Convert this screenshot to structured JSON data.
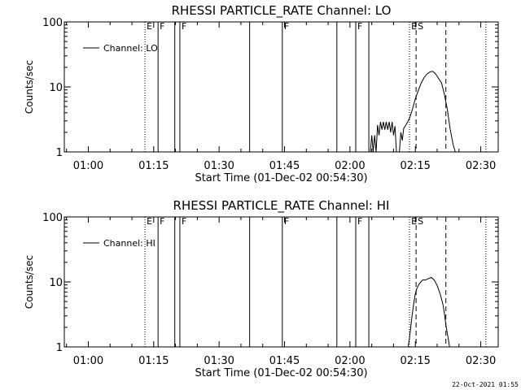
{
  "chart_data": [
    {
      "type": "line",
      "title": "RHESSI PARTICLE_RATE Channel: LO",
      "xlabel": "Start Time (01-Dec-02 00:54:30)",
      "ylabel": "Counts/sec",
      "xscale": "time",
      "yscale": "log",
      "xlim": [
        "00:54:30",
        "02:34:00"
      ],
      "ylim": [
        1,
        100
      ],
      "x_ticks": [
        "01:00",
        "01:15",
        "01:30",
        "01:45",
        "02:00",
        "02:15",
        "02:30"
      ],
      "y_ticks": [
        "1",
        "10",
        "100"
      ],
      "legend": {
        "label": "Channel: LO",
        "position": "top-left"
      },
      "grid": false,
      "series": [
        {
          "name": "Channel: LO",
          "x": [
            "02:04:40",
            "02:05:00",
            "02:05:20",
            "02:05:40",
            "02:06:00",
            "02:06:20",
            "02:06:40",
            "02:07:00",
            "02:07:20",
            "02:07:40",
            "02:08:00",
            "02:08:20",
            "02:08:40",
            "02:09:00",
            "02:09:20",
            "02:09:40",
            "02:10:00",
            "02:10:20",
            "02:10:40",
            "02:11:00",
            "02:11:20",
            "02:11:40",
            "02:12:00",
            "02:12:20",
            "02:13:00",
            "02:13:40",
            "02:14:20",
            "02:15:00",
            "02:15:40",
            "02:16:20",
            "02:17:00",
            "02:17:40",
            "02:18:20",
            "02:19:00",
            "02:19:40",
            "02:20:20",
            "02:21:00",
            "02:21:40",
            "02:22:20",
            "02:23:00",
            "02:23:40",
            "02:24:10"
          ],
          "y": [
            1.0,
            1.8,
            1.0,
            1.8,
            1.0,
            2.6,
            1.8,
            2.9,
            2.2,
            2.9,
            2.2,
            2.9,
            2.2,
            2.9,
            2.0,
            2.9,
            1.8,
            2.5,
            1.0,
            1.0,
            1.0,
            2.0,
            1.5,
            2.3,
            2.7,
            3.3,
            4.5,
            6.6,
            8.8,
            11.5,
            13.9,
            15.8,
            17.0,
            17.4,
            15.8,
            13.5,
            11.5,
            7.7,
            4.5,
            2.2,
            1.3,
            1.0
          ]
        }
      ],
      "annotations": [
        {
          "time": "01:13:00",
          "style": "dotted",
          "label": "E"
        },
        {
          "time": "01:16:00",
          "style": "solid",
          "label": "F"
        },
        {
          "time": "01:19:50",
          "style": "solid",
          "label": ""
        },
        {
          "time": "01:21:00",
          "style": "solid",
          "label": "F"
        },
        {
          "time": "01:37:00",
          "style": "solid",
          "label": ""
        },
        {
          "time": "01:44:30",
          "style": "solid",
          "label": "F"
        },
        {
          "time": "01:57:00",
          "style": "solid",
          "label": ""
        },
        {
          "time": "02:01:20",
          "style": "solid",
          "label": "F"
        },
        {
          "time": "02:04:20",
          "style": "solid",
          "label": ""
        },
        {
          "time": "02:13:40",
          "style": "dotted",
          "label": "E"
        },
        {
          "time": "02:15:10",
          "style": "dashed",
          "label": "S"
        },
        {
          "time": "02:22:00",
          "style": "dashed",
          "label": ""
        },
        {
          "time": "02:31:10",
          "style": "dotted",
          "label": ""
        }
      ]
    },
    {
      "type": "line",
      "title": "RHESSI PARTICLE_RATE Channel: HI",
      "xlabel": "Start Time (01-Dec-02 00:54:30)",
      "ylabel": "Counts/sec",
      "xscale": "time",
      "yscale": "log",
      "xlim": [
        "00:54:30",
        "02:34:00"
      ],
      "ylim": [
        1,
        100
      ],
      "x_ticks": [
        "01:00",
        "01:15",
        "01:30",
        "01:45",
        "02:00",
        "02:15",
        "02:30"
      ],
      "y_ticks": [
        "1",
        "10",
        "100"
      ],
      "legend": {
        "label": "Channel: HI",
        "position": "top-left"
      },
      "grid": false,
      "series": [
        {
          "name": "Channel: HI",
          "x": [
            "02:13:20",
            "02:13:40",
            "02:14:00",
            "02:14:20",
            "02:14:40",
            "02:15:00",
            "02:15:20",
            "02:15:40",
            "02:16:00",
            "02:16:40",
            "02:17:20",
            "02:18:00",
            "02:18:40",
            "02:19:20",
            "02:20:00",
            "02:20:40",
            "02:21:20",
            "02:21:40",
            "02:22:00",
            "02:22:20",
            "02:22:40",
            "02:22:50"
          ],
          "y": [
            1.0,
            1.4,
            2.2,
            3.3,
            4.8,
            6.6,
            7.9,
            8.8,
            9.6,
            10.7,
            10.7,
            11.3,
            11.7,
            10.7,
            8.8,
            6.6,
            4.5,
            3.3,
            2.2,
            1.6,
            1.2,
            1.0
          ]
        }
      ],
      "annotations": [
        {
          "time": "01:13:00",
          "style": "dotted",
          "label": "E"
        },
        {
          "time": "01:16:00",
          "style": "solid",
          "label": "F"
        },
        {
          "time": "01:19:50",
          "style": "solid",
          "label": ""
        },
        {
          "time": "01:21:00",
          "style": "solid",
          "label": "F"
        },
        {
          "time": "01:37:00",
          "style": "solid",
          "label": ""
        },
        {
          "time": "01:44:30",
          "style": "solid",
          "label": "F"
        },
        {
          "time": "01:57:00",
          "style": "solid",
          "label": ""
        },
        {
          "time": "02:01:20",
          "style": "solid",
          "label": "F"
        },
        {
          "time": "02:04:20",
          "style": "solid",
          "label": ""
        },
        {
          "time": "02:13:40",
          "style": "dotted",
          "label": "E"
        },
        {
          "time": "02:15:10",
          "style": "dashed",
          "label": "S"
        },
        {
          "time": "02:22:00",
          "style": "dashed",
          "label": ""
        },
        {
          "time": "02:31:10",
          "style": "dotted",
          "label": ""
        }
      ]
    }
  ],
  "footer": {
    "timestamp": "22-Oct-2021 01:55"
  }
}
